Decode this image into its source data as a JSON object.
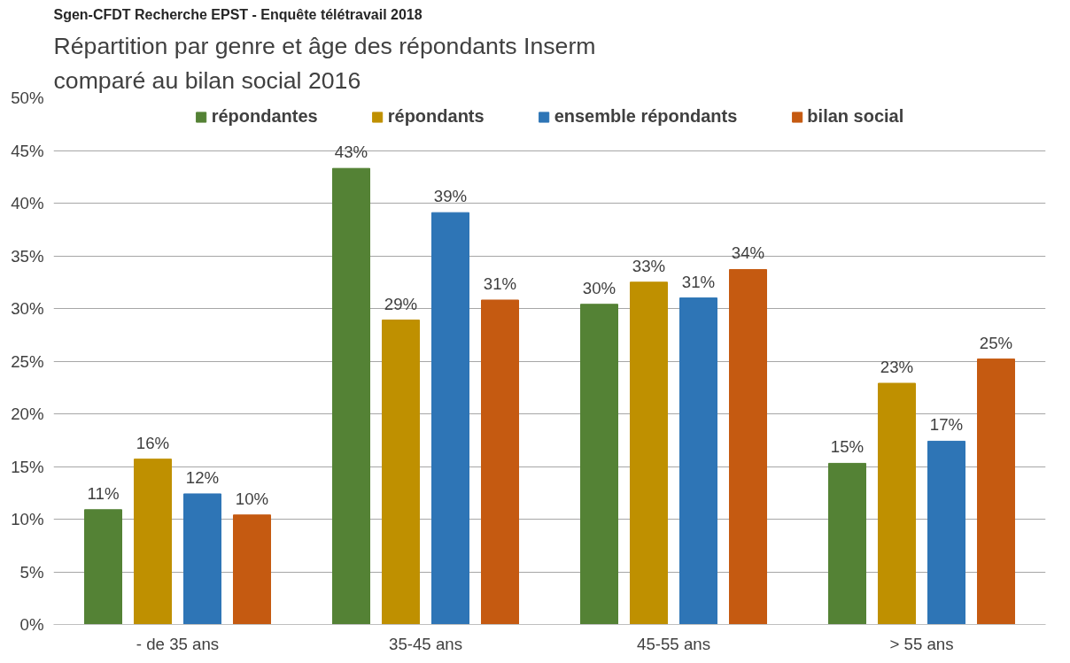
{
  "chart_data": {
    "type": "bar",
    "title": "Sgen-CFDT Recherche EPST - Enquête télétravail 2018",
    "subtitle": "Répartition par genre et âge des répondants Inserm\ncomparé au bilan social 2016",
    "categories": [
      "- de 35 ans",
      "35-45 ans",
      "45-55 ans",
      "> 55 ans"
    ],
    "series": [
      {
        "name": "répondantes",
        "color": "#548235",
        "values": [
          10.9,
          43.3,
          30.4,
          15.3
        ],
        "value_labels": [
          "11%",
          "43%",
          "30%",
          "15%"
        ]
      },
      {
        "name": "répondants",
        "color": "#bf9000",
        "values": [
          15.7,
          28.9,
          32.5,
          22.9
        ],
        "value_labels": [
          "16%",
          "29%",
          "33%",
          "23%"
        ]
      },
      {
        "name": "ensemble répondants",
        "color": "#2e75b6",
        "values": [
          12.4,
          39.1,
          31.0,
          17.4
        ],
        "value_labels": [
          "12%",
          "39%",
          "31%",
          "17%"
        ]
      },
      {
        "name": "bilan social",
        "color": "#c55a11",
        "values": [
          10.4,
          30.8,
          33.7,
          25.2
        ],
        "value_labels": [
          "10%",
          "31%",
          "34%",
          "25%"
        ]
      }
    ],
    "ylim": [
      0,
      50
    ],
    "yticks": [
      {
        "value": 0,
        "label": "0%"
      },
      {
        "value": 5,
        "label": "5%"
      },
      {
        "value": 10,
        "label": "10%"
      },
      {
        "value": 15,
        "label": "15%"
      },
      {
        "value": 20,
        "label": "20%"
      },
      {
        "value": 25,
        "label": "25%"
      },
      {
        "value": 30,
        "label": "30%"
      },
      {
        "value": 35,
        "label": "35%"
      },
      {
        "value": 40,
        "label": "40%"
      },
      {
        "value": 45,
        "label": "45%"
      },
      {
        "value": 50,
        "label": "50%"
      }
    ],
    "grid": "y",
    "legend": "top"
  }
}
